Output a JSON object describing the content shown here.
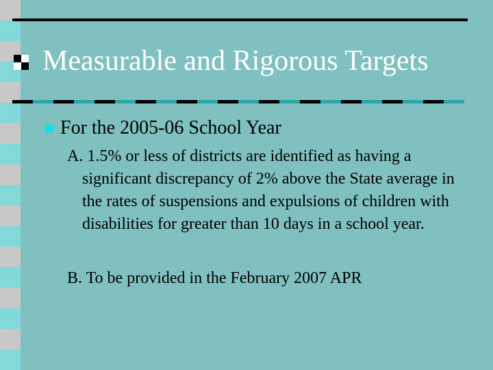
{
  "slide": {
    "title": "Measurable and Rigorous Targets",
    "bullet": "For the 2005-06 School Year",
    "items": [
      {
        "text": "A.  1.5% or less of districts are identified as having a significant discrepancy of 2% above the State average in the rates of suspensions and expulsions of children with disabilities for greater than 10 days in a school year."
      },
      {
        "text": "B.  To be provided in the February 2007 APR"
      }
    ]
  },
  "colors": {
    "background": "#80c0c0",
    "title_text": "#ffffff",
    "bullet": "#00e6ef",
    "accent_dash": "#2aa7a7"
  }
}
